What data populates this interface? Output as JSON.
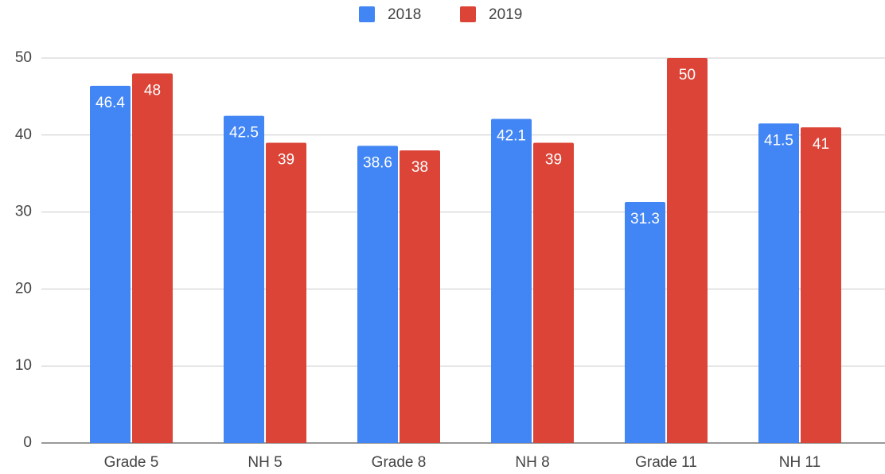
{
  "chart_data": {
    "type": "bar",
    "categories": [
      "Grade 5",
      "NH 5",
      "Grade 8",
      "NH 8",
      "Grade 11",
      "NH 11"
    ],
    "series": [
      {
        "name": "2018",
        "color": "#4285f4",
        "values": [
          46.4,
          42.5,
          38.6,
          42.1,
          31.3,
          41.5
        ]
      },
      {
        "name": "2019",
        "color": "#db4437",
        "values": [
          48,
          39,
          38,
          39,
          50,
          41
        ]
      }
    ],
    "ylim": [
      0,
      50
    ],
    "yticks": [
      0,
      10,
      20,
      30,
      40,
      50
    ],
    "grid": true,
    "legend": "top"
  }
}
